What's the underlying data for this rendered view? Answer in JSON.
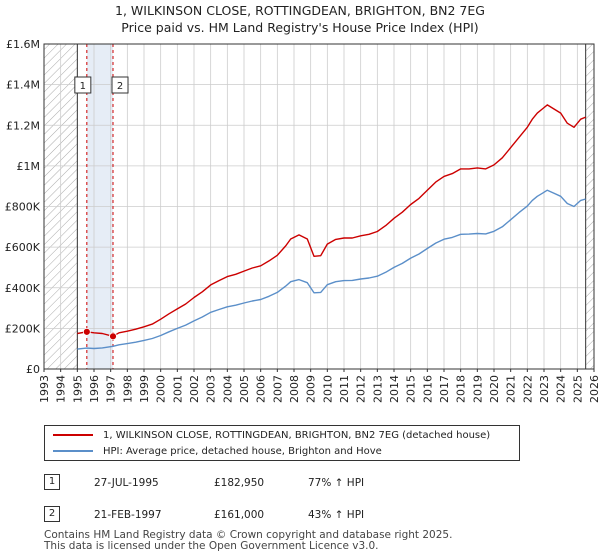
{
  "title": "1, WILKINSON CLOSE, ROTTINGDEAN, BRIGHTON, BN2 7EG",
  "subtitle": "Price paid vs. HM Land Registry's House Price Index (HPI)",
  "colors": {
    "property": "#cc0000",
    "hpi": "#5b8fc9",
    "marker_line": "#cc0000",
    "grid": "#cccccc",
    "hatch": "#999999",
    "shaded": "#dce6f2"
  },
  "chart_data": {
    "type": "line",
    "title": "1, WILKINSON CLOSE, ROTTINGDEAN, BRIGHTON, BN2 7EG",
    "subtitle": "Price paid vs. HM Land Registry's House Price Index (HPI)",
    "xlabel": "",
    "ylabel": "",
    "xlim": [
      1993,
      2026
    ],
    "ylim": [
      0,
      1600000
    ],
    "grid": true,
    "x_ticks": [
      1993,
      1994,
      1995,
      1996,
      1997,
      1998,
      1999,
      2000,
      2001,
      2002,
      2003,
      2004,
      2005,
      2006,
      2007,
      2008,
      2009,
      2010,
      2011,
      2012,
      2013,
      2014,
      2015,
      2016,
      2017,
      2018,
      2019,
      2020,
      2021,
      2022,
      2023,
      2024,
      2025,
      2026
    ],
    "y_ticks": [
      {
        "value": 0,
        "label": "£0"
      },
      {
        "value": 200000,
        "label": "£200K"
      },
      {
        "value": 400000,
        "label": "£400K"
      },
      {
        "value": 600000,
        "label": "£600K"
      },
      {
        "value": 800000,
        "label": "£800K"
      },
      {
        "value": 1000000,
        "label": "£1M"
      },
      {
        "value": 1200000,
        "label": "£1.2M"
      },
      {
        "value": 1400000,
        "label": "£1.4M"
      },
      {
        "value": 1600000,
        "label": "£1.6M"
      }
    ],
    "data_start": 1995.0,
    "data_end": 2025.5,
    "series": [
      {
        "name": "1, WILKINSON CLOSE, ROTTINGDEAN, BRIGHTON, BN2 7EG (detached house)",
        "color": "#cc0000",
        "x": [
          1995.0,
          1995.57,
          1996.0,
          1996.5,
          1997.14,
          1997.5,
          1998.0,
          1998.5,
          1999.0,
          1999.5,
          2000.0,
          2000.5,
          2001.0,
          2001.5,
          2002.0,
          2002.5,
          2003.0,
          2003.5,
          2004.0,
          2004.5,
          2005.0,
          2005.5,
          2006.0,
          2006.5,
          2007.0,
          2007.5,
          2007.8,
          2008.3,
          2008.8,
          2009.2,
          2009.6,
          2010.0,
          2010.5,
          2011.0,
          2011.5,
          2012.0,
          2012.5,
          2013.0,
          2013.5,
          2014.0,
          2014.5,
          2015.0,
          2015.5,
          2016.0,
          2016.5,
          2017.0,
          2017.5,
          2018.0,
          2018.5,
          2019.0,
          2019.5,
          2020.0,
          2020.5,
          2021.0,
          2021.5,
          2022.0,
          2022.3,
          2022.6,
          2022.9,
          2023.2,
          2023.6,
          2024.0,
          2024.4,
          2024.8,
          2025.2,
          2025.5
        ],
        "values": [
          175000,
          182950,
          178000,
          175000,
          161000,
          178000,
          186000,
          196000,
          208000,
          221000,
          245000,
          272000,
          296000,
          320000,
          352000,
          380000,
          414000,
          435000,
          455000,
          466000,
          482000,
          497000,
          508000,
          532000,
          560000,
          606000,
          640000,
          660000,
          640000,
          555000,
          558000,
          615000,
          638000,
          645000,
          645000,
          656000,
          663000,
          677000,
          706000,
          742000,
          772000,
          810000,
          840000,
          880000,
          920000,
          948000,
          962000,
          985000,
          985000,
          990000,
          985000,
          1005000,
          1040000,
          1090000,
          1140000,
          1190000,
          1230000,
          1260000,
          1280000,
          1300000,
          1280000,
          1260000,
          1210000,
          1190000,
          1230000,
          1240000
        ]
      },
      {
        "name": "HPI: Average price, detached house, Brighton and Hove",
        "color": "#5b8fc9",
        "x": [
          1995.0,
          1995.57,
          1996.0,
          1996.5,
          1997.14,
          1997.5,
          1998.0,
          1998.5,
          1999.0,
          1999.5,
          2000.0,
          2000.5,
          2001.0,
          2001.5,
          2002.0,
          2002.5,
          2003.0,
          2003.5,
          2004.0,
          2004.5,
          2005.0,
          2005.5,
          2006.0,
          2006.5,
          2007.0,
          2007.5,
          2007.8,
          2008.3,
          2008.8,
          2009.2,
          2009.6,
          2010.0,
          2010.5,
          2011.0,
          2011.5,
          2012.0,
          2012.5,
          2013.0,
          2013.5,
          2014.0,
          2014.5,
          2015.0,
          2015.5,
          2016.0,
          2016.5,
          2017.0,
          2017.5,
          2018.0,
          2018.5,
          2019.0,
          2019.5,
          2020.0,
          2020.5,
          2021.0,
          2021.5,
          2022.0,
          2022.3,
          2022.6,
          2022.9,
          2023.2,
          2023.6,
          2024.0,
          2024.4,
          2024.8,
          2025.2,
          2025.5
        ],
        "values": [
          98000,
          103000,
          101000,
          104000,
          112000,
          119000,
          125000,
          132000,
          141000,
          150000,
          165000,
          183000,
          200000,
          216000,
          237000,
          256000,
          279000,
          293000,
          306000,
          314000,
          325000,
          335000,
          342000,
          358000,
          377000,
          408000,
          430000,
          440000,
          425000,
          375000,
          377000,
          415000,
          430000,
          435000,
          436000,
          443000,
          448000,
          457000,
          476000,
          500000,
          520000,
          546000,
          566000,
          593000,
          620000,
          639000,
          648000,
          663000,
          664000,
          667000,
          665000,
          678000,
          700000,
          735000,
          770000,
          802000,
          830000,
          850000,
          865000,
          880000,
          865000,
          850000,
          815000,
          800000,
          830000,
          837000
        ]
      }
    ],
    "annotations": [
      {
        "label": "1",
        "x": 1995.57,
        "value": 182950
      },
      {
        "label": "2",
        "x": 1997.14,
        "value": 161000
      }
    ]
  },
  "legend": {
    "property_label": "1, WILKINSON CLOSE, ROTTINGDEAN, BRIGHTON, BN2 7EG (detached house)",
    "hpi_label": "HPI: Average price, detached house, Brighton and Hove"
  },
  "transactions": [
    {
      "num": "1",
      "date": "27-JUL-1995",
      "price": "£182,950",
      "hpi": "77% ↑ HPI"
    },
    {
      "num": "2",
      "date": "21-FEB-1997",
      "price": "£161,000",
      "hpi": "43% ↑ HPI"
    }
  ],
  "footer": {
    "line1": "Contains HM Land Registry data © Crown copyright and database right 2025.",
    "line2": "This data is licensed under the Open Government Licence v3.0."
  }
}
